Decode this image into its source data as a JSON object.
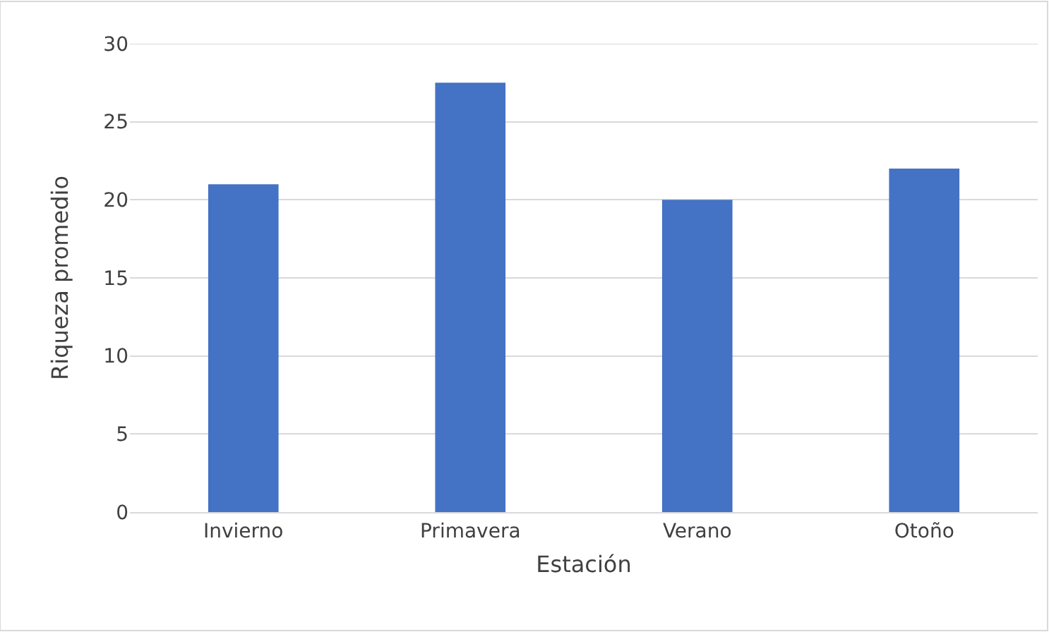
{
  "chart_data": {
    "type": "bar",
    "xlabel": "Estación",
    "ylabel": "Riqueza promedio",
    "categories": [
      "Invierno",
      "Primavera",
      "Verano",
      "Otoño"
    ],
    "values": [
      21,
      27.5,
      20,
      22
    ],
    "color": "#4472c4",
    "ylim": [
      0,
      30
    ],
    "yticks": [
      0,
      5,
      10,
      15,
      20,
      25,
      30
    ],
    "grid": "y"
  }
}
